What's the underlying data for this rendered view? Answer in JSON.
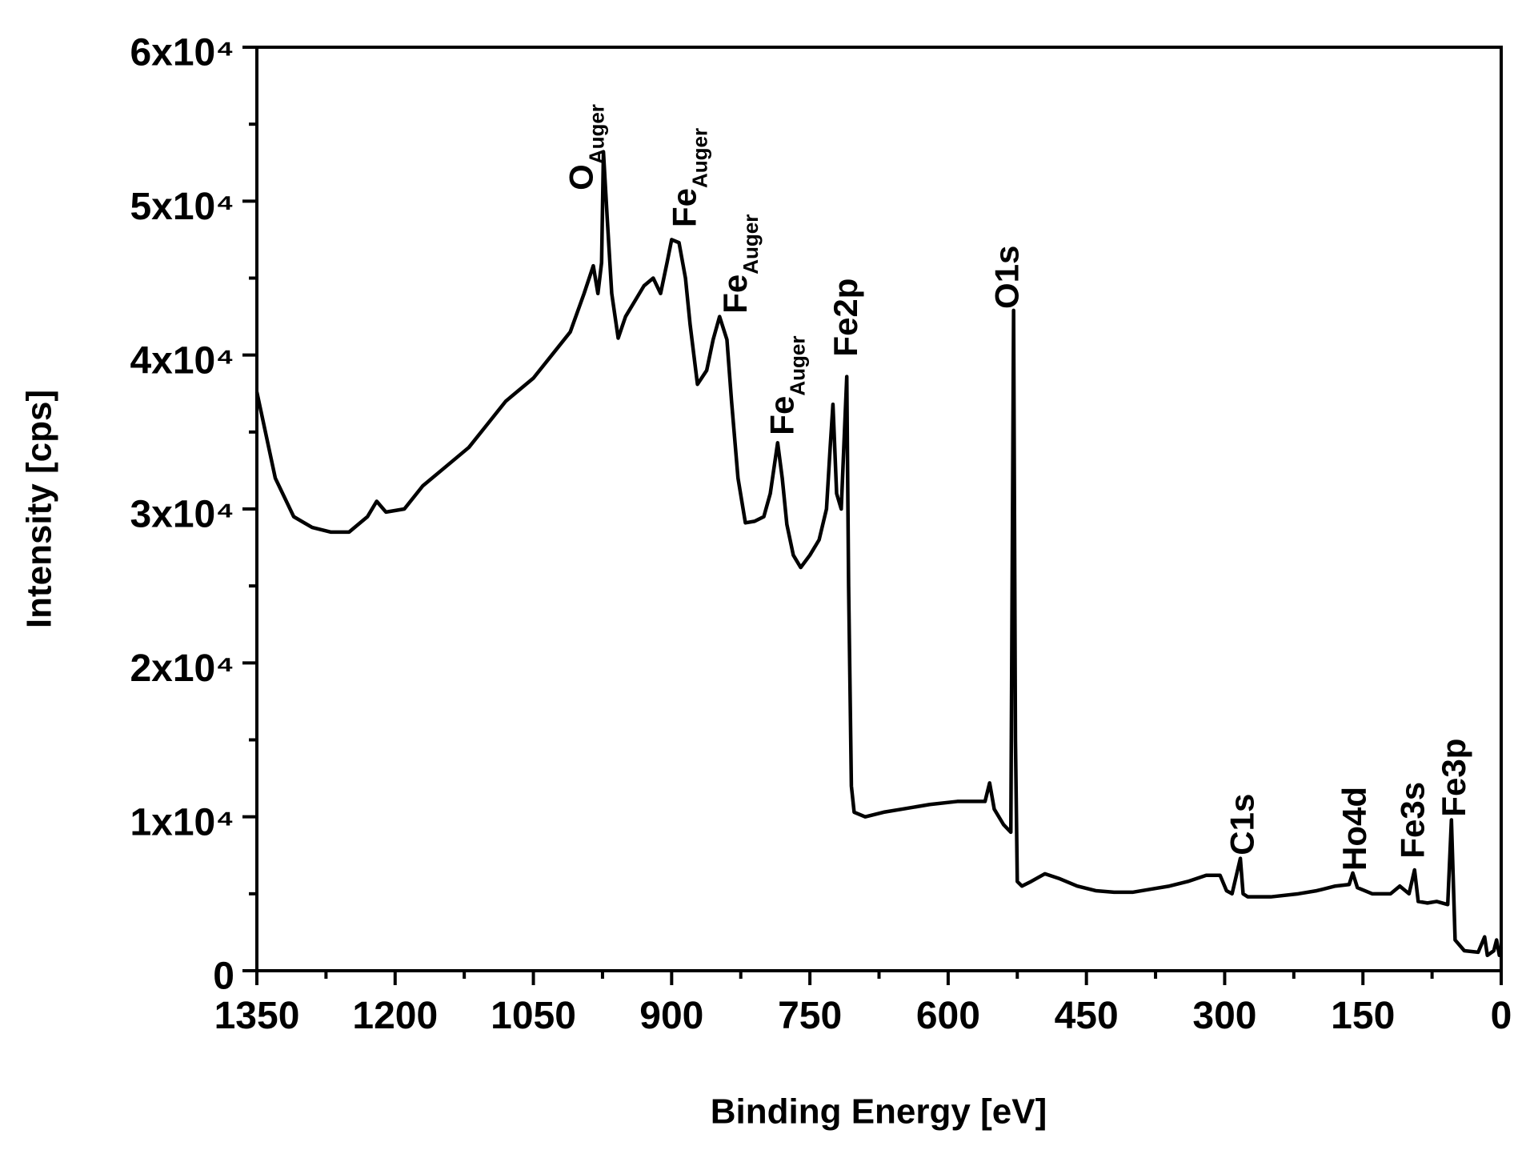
{
  "chart_data": {
    "type": "line",
    "xlabel": "Binding Energy [eV]",
    "ylabel": "Intensity [cps]",
    "xlim": [
      1350,
      0
    ],
    "ylim": [
      0,
      60000
    ],
    "xticks": [
      1350,
      1200,
      1050,
      900,
      750,
      600,
      450,
      300,
      150,
      0
    ],
    "xticks_minor": [
      1275,
      1125,
      975,
      825,
      675,
      525,
      375,
      225,
      75
    ],
    "yticks": [
      0,
      {
        "value": 10000,
        "label": "1x10⁴"
      },
      {
        "value": 20000,
        "label": "2x10⁴"
      },
      {
        "value": 30000,
        "label": "3x10⁴"
      },
      {
        "value": 40000,
        "label": "4x10⁴"
      },
      {
        "value": 50000,
        "label": "5x10⁴"
      },
      {
        "value": 60000,
        "label": "6x10⁴"
      }
    ],
    "yticks_minor": [
      5000,
      15000,
      25000,
      35000,
      45000,
      55000
    ],
    "grid": false,
    "series": [
      {
        "color": "#000000",
        "x": [
          1350,
          1330,
          1310,
          1290,
          1270,
          1250,
          1230,
          1220,
          1210,
          1190,
          1170,
          1150,
          1120,
          1100,
          1080,
          1050,
          1030,
          1010,
          995,
          985,
          980,
          976,
          974,
          970,
          965,
          958,
          950,
          940,
          930,
          920,
          912,
          905,
          900,
          892,
          885,
          880,
          872,
          862,
          855,
          848,
          840,
          835,
          828,
          820,
          810,
          800,
          793,
          785,
          780,
          775,
          768,
          760,
          750,
          740,
          732,
          728,
          725,
          721,
          716,
          710,
          708,
          705,
          702,
          690,
          670,
          650,
          620,
          590,
          570,
          560,
          555,
          550,
          540,
          532,
          529,
          527,
          525,
          520,
          510,
          495,
          480,
          460,
          440,
          420,
          400,
          380,
          360,
          340,
          320,
          305,
          298,
          292,
          283,
          280,
          275,
          250,
          220,
          200,
          180,
          165,
          161,
          156,
          140,
          120,
          110,
          100,
          94,
          90,
          80,
          70,
          58,
          54,
          50,
          40,
          25,
          18,
          15,
          8,
          5,
          2,
          0
        ],
        "values": [
          37600,
          32000,
          29500,
          28800,
          28500,
          28500,
          29500,
          30500,
          29800,
          30000,
          31500,
          32500,
          34000,
          35500,
          37000,
          38500,
          40000,
          41500,
          44000,
          45800,
          44000,
          46000,
          53200,
          49000,
          44000,
          41100,
          42500,
          43500,
          44500,
          45000,
          44000,
          46000,
          47500,
          47300,
          45000,
          42000,
          38100,
          39000,
          41000,
          42500,
          41000,
          37000,
          32000,
          29100,
          29200,
          29500,
          31000,
          34300,
          32000,
          29000,
          27000,
          26200,
          27000,
          28000,
          30000,
          34000,
          36800,
          31000,
          30000,
          38600,
          25000,
          12000,
          10300,
          10000,
          10300,
          10500,
          10800,
          11000,
          11000,
          11000,
          12200,
          10500,
          9500,
          9000,
          42900,
          15000,
          5800,
          5500,
          5800,
          6300,
          6000,
          5500,
          5200,
          5100,
          5100,
          5300,
          5500,
          5800,
          6200,
          6200,
          5200,
          5000,
          7300,
          5000,
          4800,
          4800,
          5000,
          5200,
          5500,
          5600,
          6350,
          5400,
          5000,
          5000,
          5500,
          5000,
          6550,
          4500,
          4400,
          4500,
          4300,
          9800,
          2000,
          1300,
          1200,
          2200,
          1000,
          1300,
          2000,
          1000,
          1500
        ]
      }
    ],
    "annotations": [
      {
        "text": "O",
        "sub": "Auger",
        "x": 998,
        "y": 50700
      },
      {
        "text": "Fe",
        "sub": "Auger",
        "x": 886,
        "y": 48300
      },
      {
        "text": "Fe",
        "sub": "Auger",
        "x": 831,
        "y": 42700
      },
      {
        "text": "Fe",
        "sub": "Auger",
        "x": 780,
        "y": 34800
      },
      {
        "text": "Fe2p",
        "x": 711,
        "y": 39900
      },
      {
        "text": "O1s",
        "x": 536,
        "y": 43000
      },
      {
        "text": "C1s",
        "x": 281,
        "y": 7500
      },
      {
        "text": "Ho4d",
        "x": 159,
        "y": 6500
      },
      {
        "text": "Fe3s",
        "x": 96,
        "y": 7300
      },
      {
        "text": "Fe3p",
        "x": 51,
        "y": 10000
      }
    ]
  }
}
